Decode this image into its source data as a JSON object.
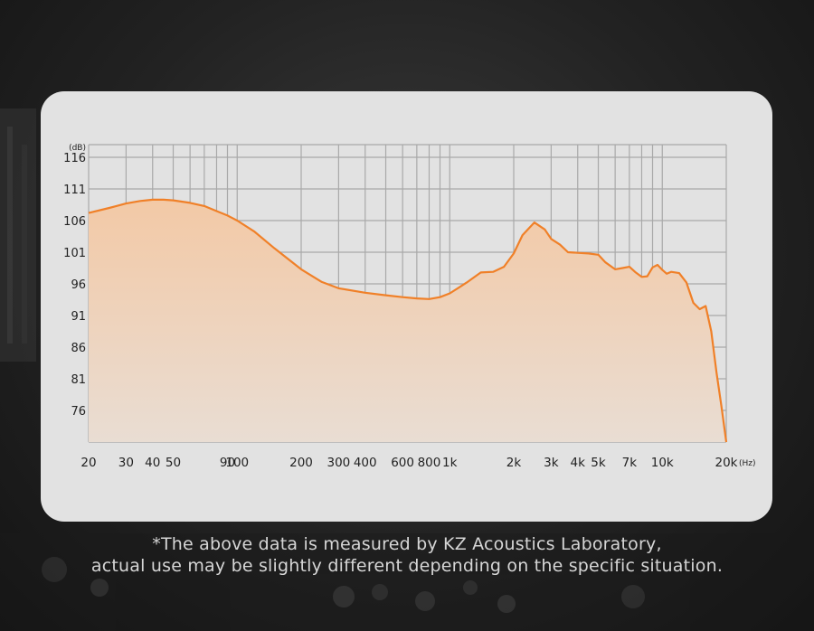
{
  "chart_data": {
    "type": "area",
    "x_scale": "log",
    "xlim": [
      20,
      20000
    ],
    "ylim": [
      71,
      118
    ],
    "yunit": "(dB)",
    "xunit": "(Hz)",
    "y_ticks": [
      116,
      111,
      106,
      101,
      96,
      91,
      86,
      81,
      76
    ],
    "x_ticks": [
      {
        "v": 20,
        "label": "20"
      },
      {
        "v": 30,
        "label": "30"
      },
      {
        "v": 40,
        "label": "40"
      },
      {
        "v": 50,
        "label": "50"
      },
      {
        "v": 90,
        "label": "90"
      },
      {
        "v": 100,
        "label": "100"
      },
      {
        "v": 200,
        "label": "200"
      },
      {
        "v": 300,
        "label": "300"
      },
      {
        "v": 400,
        "label": "400"
      },
      {
        "v": 600,
        "label": "600"
      },
      {
        "v": 800,
        "label": "800"
      },
      {
        "v": 1000,
        "label": "1k"
      },
      {
        "v": 2000,
        "label": "2k"
      },
      {
        "v": 3000,
        "label": "3k"
      },
      {
        "v": 4000,
        "label": "4k"
      },
      {
        "v": 5000,
        "label": "5k"
      },
      {
        "v": 7000,
        "label": "7k"
      },
      {
        "v": 10000,
        "label": "10k"
      },
      {
        "v": 20000,
        "label": "20k"
      }
    ],
    "grid_x": [
      20,
      30,
      40,
      50,
      60,
      70,
      80,
      90,
      100,
      200,
      300,
      400,
      500,
      600,
      700,
      800,
      900,
      1000,
      2000,
      3000,
      4000,
      5000,
      6000,
      7000,
      8000,
      9000,
      10000,
      20000
    ],
    "grid": true,
    "x": [
      20,
      25,
      30,
      35,
      40,
      45,
      50,
      60,
      70,
      80,
      90,
      100,
      120,
      150,
      200,
      250,
      300,
      400,
      500,
      600,
      700,
      800,
      900,
      1000,
      1200,
      1400,
      1600,
      1800,
      2000,
      2200,
      2500,
      2800,
      3000,
      3300,
      3600,
      4000,
      4500,
      5000,
      5400,
      6000,
      6500,
      7000,
      7500,
      8000,
      8500,
      9000,
      9500,
      10000,
      10500,
      11000,
      12000,
      13000,
      14000,
      15000,
      16000,
      17000,
      18000,
      19000,
      20000
    ],
    "y": [
      107.2,
      108.0,
      108.7,
      109.1,
      109.3,
      109.3,
      109.2,
      108.8,
      108.3,
      107.5,
      106.8,
      106.0,
      104.3,
      101.6,
      98.3,
      96.3,
      95.3,
      94.6,
      94.2,
      93.9,
      93.7,
      93.6,
      93.9,
      94.5,
      96.2,
      97.8,
      97.9,
      98.7,
      100.8,
      103.7,
      105.7,
      104.6,
      103.1,
      102.2,
      101.0,
      100.9,
      100.8,
      100.6,
      99.4,
      98.3,
      98.5,
      98.7,
      97.8,
      97.1,
      97.2,
      98.6,
      99.0,
      98.2,
      97.6,
      97.9,
      97.7,
      96.2,
      93.0,
      92.0,
      92.5,
      88.5,
      82.0,
      76.5,
      71.0
    ],
    "line_color": "#f08028",
    "fill_top_color": "#f3c9a6",
    "fill_bottom_color": "#e9ddd3"
  },
  "footnote": {
    "line1": "*The above data is measured by KZ Acoustics Laboratory,",
    "line2": "actual use may be slightly different depending on the specific situation."
  }
}
